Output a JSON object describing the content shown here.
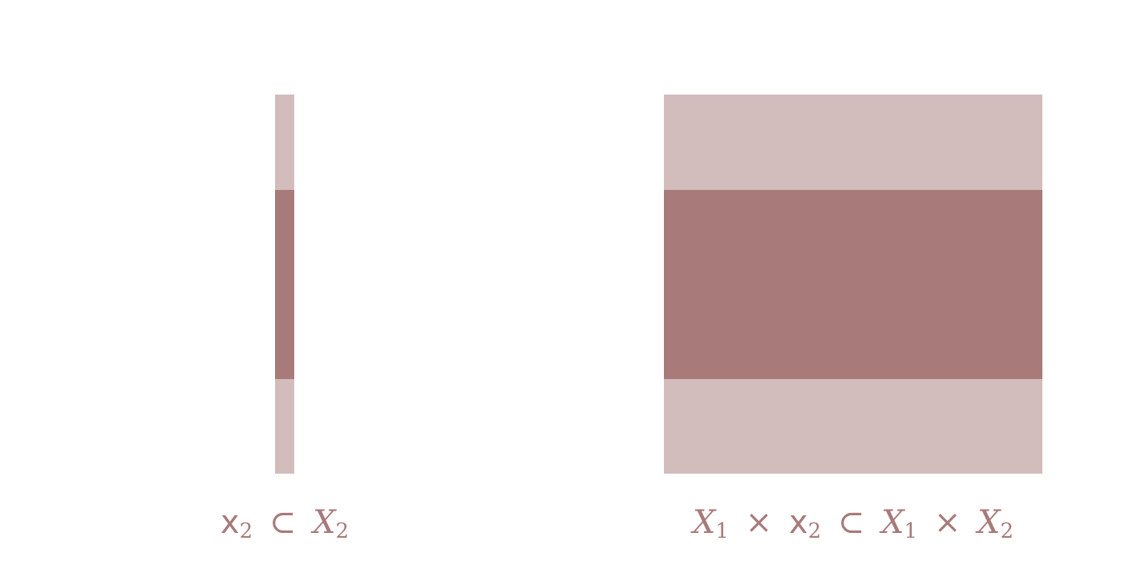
{
  "colors": {
    "light_band": "#d3bcbc",
    "dark_band": "#a87a7a",
    "caption": "#a87a7a"
  },
  "left_figure": {
    "caption": {
      "lhs_symbol": "x",
      "lhs_sub": "2",
      "relation": "⊂",
      "rhs_symbol": "X",
      "rhs_sub": "2"
    }
  },
  "right_figure": {
    "caption": {
      "t1_symbol": "X",
      "t1_sub": "1",
      "times1": "×",
      "t2_symbol": "x",
      "t2_sub": "2",
      "relation": "⊂",
      "t3_symbol": "X",
      "t3_sub": "1",
      "times2": "×",
      "t4_symbol": "X",
      "t4_sub": "2"
    }
  }
}
